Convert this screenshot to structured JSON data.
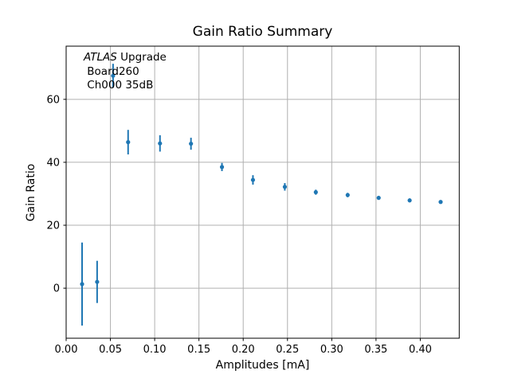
{
  "chart_data": {
    "type": "scatter",
    "title": "Gain Ratio Summary",
    "xlabel": "Amplitudes [mA]",
    "ylabel": "Gain Ratio",
    "annotation": {
      "line1_italic": "ATLAS",
      "line1_rest": " Upgrade",
      "line2": " Board260",
      "line3": " Ch000 35dB"
    },
    "marker_color": "#1f77b4",
    "grid": true,
    "grid_color": "#b0b0b0",
    "spine_color": "#000000",
    "background_color": "#ffffff",
    "xlim": [
      0.0,
      0.444
    ],
    "ylim": [
      -15.9,
      76.9
    ],
    "x_ticks": [
      0.0,
      0.05,
      0.1,
      0.15,
      0.2,
      0.25,
      0.3,
      0.35,
      0.4
    ],
    "x_tick_labels": [
      "0.00",
      "0.05",
      "0.10",
      "0.15",
      "0.20",
      "0.25",
      "0.30",
      "0.35",
      "0.40"
    ],
    "y_ticks": [
      0,
      20,
      40,
      60
    ],
    "y_tick_labels": [
      "0",
      "20",
      "40",
      "60"
    ],
    "legend": null,
    "series": [
      {
        "name": "gain-ratio-errorbar",
        "x": [
          0.018,
          0.035,
          0.053,
          0.07,
          0.106,
          0.141,
          0.176,
          0.211,
          0.247,
          0.282,
          0.318,
          0.353,
          0.388,
          0.423
        ],
        "y": [
          1.3,
          2.0,
          67.5,
          46.4,
          46.0,
          45.9,
          38.5,
          34.4,
          32.2,
          30.5,
          29.6,
          28.7,
          27.9,
          27.4
        ],
        "yerr": [
          13.2,
          6.7,
          3.8,
          3.9,
          2.6,
          1.9,
          1.3,
          1.5,
          1.2,
          0.8,
          0.7,
          0.6,
          0.6,
          0.5
        ]
      }
    ]
  }
}
